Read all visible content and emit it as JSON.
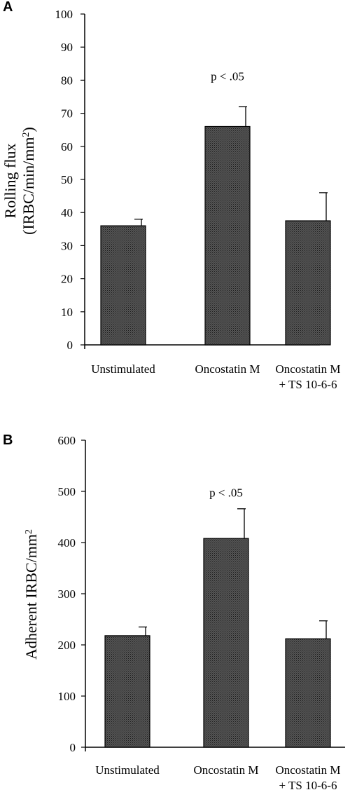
{
  "chart_data": [
    {
      "panel": "A",
      "type": "bar",
      "ylabel_line1": "Rolling flux",
      "ylabel_line2": "(IRBC/min/mm",
      "ylabel_sup": "2",
      "ylabel_close": ")",
      "ylim": [
        0,
        100
      ],
      "yticks": [
        0,
        10,
        20,
        30,
        40,
        50,
        60,
        70,
        80,
        90,
        100
      ],
      "categories": [
        [
          "Unstimulated"
        ],
        [
          "Oncostatin M"
        ],
        [
          "Oncostatin M",
          "+ TS 10-6-6"
        ]
      ],
      "values": [
        36,
        66,
        37.5
      ],
      "errors": [
        2,
        6,
        8.5
      ],
      "annotation": "p < .05",
      "annotation_y": 80
    },
    {
      "panel": "B",
      "type": "bar",
      "ylabel_line1": "Adherent IRBC/mm",
      "ylabel_sup": "2",
      "ylim": [
        0,
        600
      ],
      "yticks": [
        0,
        100,
        200,
        300,
        400,
        500,
        600
      ],
      "categories": [
        [
          "Unstimulated"
        ],
        [
          "Oncostatin M"
        ],
        [
          "Oncostatin M",
          "+ TS 10-6-6"
        ]
      ],
      "values": [
        218,
        408,
        212
      ],
      "errors": [
        17,
        58,
        35
      ],
      "annotation": "p < .05",
      "annotation_y": 490
    }
  ],
  "colors": {
    "bar_fill": "#3a3a3a",
    "bar_stroke": "#000000",
    "axis": "#000000"
  }
}
